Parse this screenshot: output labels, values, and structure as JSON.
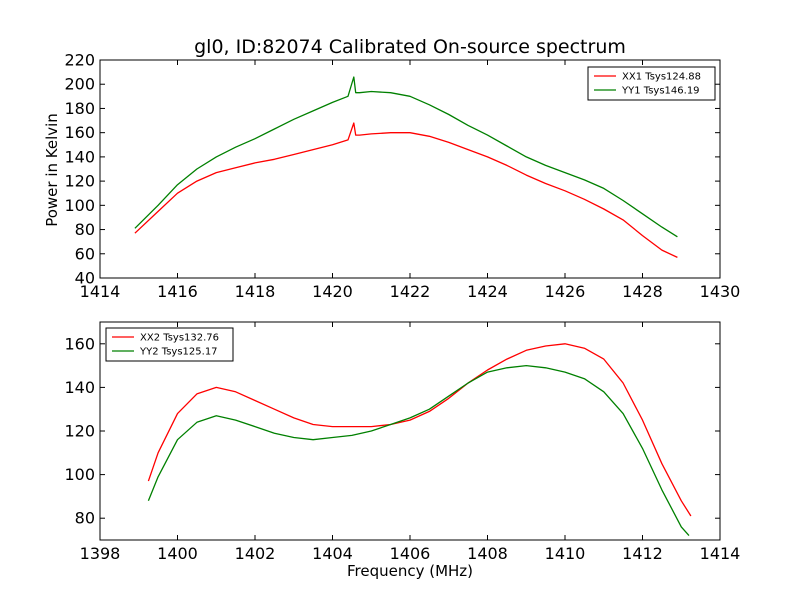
{
  "figure": {
    "title": "gl0, ID:82074 Calibrated On-source spectrum",
    "ylabel_top": "Power in Kelvin",
    "xlabel_bottom": "Frequency (MHz)"
  },
  "colors": {
    "red": "#ff0000",
    "green": "#008000"
  },
  "chart_data": [
    {
      "type": "line",
      "title": "gl0, ID:82074 Calibrated On-source spectrum",
      "xlabel": "",
      "ylabel": "Power in Kelvin",
      "xlim": [
        1414,
        1430
      ],
      "ylim": [
        40,
        220
      ],
      "xticks": [
        1414,
        1416,
        1418,
        1420,
        1422,
        1424,
        1426,
        1428,
        1430
      ],
      "yticks": [
        40,
        60,
        80,
        100,
        120,
        140,
        160,
        180,
        200,
        220
      ],
      "grid": false,
      "legend_position": "top-right",
      "series": [
        {
          "name": "XX1 Tsys124.88",
          "color": "#ff0000",
          "x": [
            1414.9,
            1415.5,
            1416.0,
            1416.5,
            1417.0,
            1417.5,
            1418.0,
            1418.5,
            1419.0,
            1419.5,
            1420.0,
            1420.4,
            1420.55,
            1420.6,
            1420.7,
            1421.0,
            1421.5,
            1422.0,
            1422.5,
            1423.0,
            1423.5,
            1424.0,
            1424.5,
            1425.0,
            1425.5,
            1426.0,
            1426.5,
            1427.0,
            1427.5,
            1428.0,
            1428.5,
            1428.9
          ],
          "y": [
            77,
            95,
            110,
            120,
            127,
            131,
            135,
            138,
            142,
            146,
            150,
            154,
            168,
            158,
            158,
            159,
            160,
            160,
            157,
            152,
            146,
            140,
            133,
            125,
            118,
            112,
            105,
            97,
            88,
            75,
            63,
            57
          ]
        },
        {
          "name": "YY1 Tsys146.19",
          "color": "#008000",
          "x": [
            1414.9,
            1415.5,
            1416.0,
            1416.5,
            1417.0,
            1417.5,
            1418.0,
            1418.5,
            1419.0,
            1419.5,
            1420.0,
            1420.4,
            1420.55,
            1420.6,
            1420.7,
            1421.0,
            1421.5,
            1422.0,
            1422.5,
            1423.0,
            1423.5,
            1424.0,
            1424.5,
            1425.0,
            1425.5,
            1426.0,
            1426.5,
            1427.0,
            1427.5,
            1428.0,
            1428.5,
            1428.9
          ],
          "y": [
            81,
            100,
            117,
            130,
            140,
            148,
            155,
            163,
            171,
            178,
            185,
            190,
            206,
            193,
            193,
            194,
            193,
            190,
            183,
            175,
            166,
            158,
            149,
            140,
            133,
            127,
            121,
            114,
            104,
            93,
            82,
            74
          ]
        }
      ]
    },
    {
      "type": "line",
      "title": "",
      "xlabel": "Frequency (MHz)",
      "ylabel": "",
      "xlim": [
        1398,
        1414
      ],
      "ylim": [
        70,
        170
      ],
      "xticks": [
        1398,
        1400,
        1402,
        1404,
        1406,
        1408,
        1410,
        1412,
        1414
      ],
      "yticks": [
        80,
        100,
        120,
        140,
        160
      ],
      "grid": false,
      "legend_position": "top-left",
      "series": [
        {
          "name": "XX2 Tsys132.76",
          "color": "#ff0000",
          "x": [
            1399.25,
            1399.5,
            1400.0,
            1400.5,
            1401.0,
            1401.5,
            1402.0,
            1402.5,
            1403.0,
            1403.5,
            1404.0,
            1404.5,
            1405.0,
            1405.5,
            1406.0,
            1406.5,
            1407.0,
            1407.5,
            1408.0,
            1408.5,
            1409.0,
            1409.5,
            1410.0,
            1410.5,
            1411.0,
            1411.5,
            1412.0,
            1412.5,
            1413.0,
            1413.25
          ],
          "y": [
            97,
            110,
            128,
            137,
            140,
            138,
            134,
            130,
            126,
            123,
            122,
            122,
            122,
            123,
            125,
            129,
            135,
            142,
            148,
            153,
            157,
            159,
            160,
            158,
            153,
            142,
            125,
            105,
            88,
            81
          ]
        },
        {
          "name": "YY2 Tsys125.17",
          "color": "#008000",
          "x": [
            1399.25,
            1399.5,
            1400.0,
            1400.5,
            1401.0,
            1401.5,
            1402.0,
            1402.5,
            1403.0,
            1403.5,
            1404.0,
            1404.5,
            1405.0,
            1405.5,
            1406.0,
            1406.5,
            1407.0,
            1407.5,
            1408.0,
            1408.5,
            1409.0,
            1409.5,
            1410.0,
            1410.5,
            1411.0,
            1411.5,
            1412.0,
            1412.5,
            1413.0,
            1413.2
          ],
          "y": [
            88,
            99,
            116,
            124,
            127,
            125,
            122,
            119,
            117,
            116,
            117,
            118,
            120,
            123,
            126,
            130,
            136,
            142,
            147,
            149,
            150,
            149,
            147,
            144,
            138,
            128,
            112,
            93,
            76,
            72
          ]
        }
      ]
    }
  ]
}
